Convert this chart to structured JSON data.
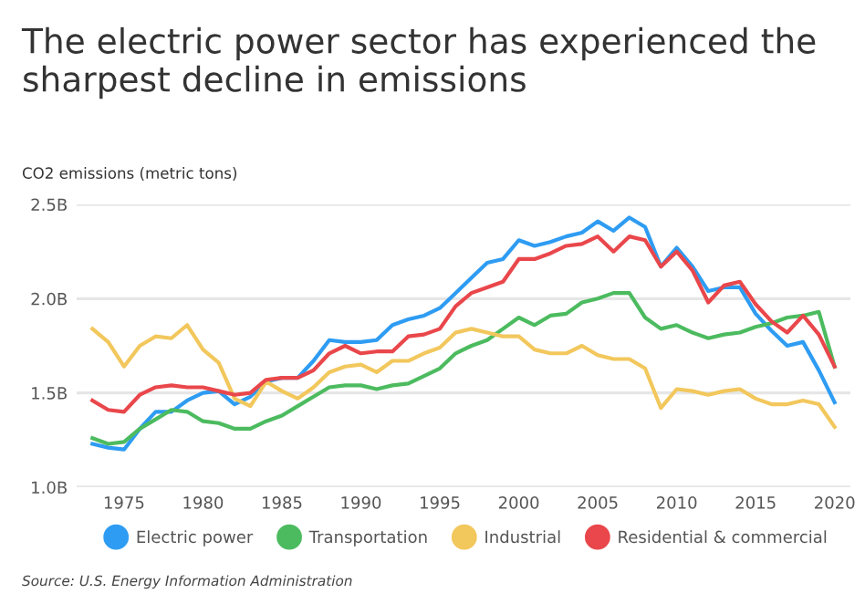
{
  "chart_data": {
    "type": "line",
    "title": "The electric power sector has experienced the sharpest decline in emissions",
    "ylabel": "CO2 emissions (metric tons)",
    "x": [
      1973,
      1974,
      1975,
      1976,
      1977,
      1978,
      1979,
      1980,
      1981,
      1982,
      1983,
      1984,
      1985,
      1986,
      1987,
      1988,
      1989,
      1990,
      1991,
      1992,
      1993,
      1994,
      1995,
      1996,
      1997,
      1998,
      1999,
      2000,
      2001,
      2002,
      2003,
      2004,
      2005,
      2006,
      2007,
      2008,
      2009,
      2010,
      2011,
      2012,
      2013,
      2014,
      2015,
      2016,
      2017,
      2018,
      2019,
      2020
    ],
    "series": [
      {
        "name": "Electric power",
        "color": "#2e9cf2",
        "values": [
          1.23,
          1.21,
          1.2,
          1.31,
          1.4,
          1.4,
          1.46,
          1.5,
          1.51,
          1.44,
          1.48,
          1.56,
          1.58,
          1.58,
          1.67,
          1.78,
          1.77,
          1.77,
          1.78,
          1.86,
          1.89,
          1.91,
          1.95,
          2.03,
          2.11,
          2.19,
          2.21,
          2.31,
          2.28,
          2.3,
          2.33,
          2.35,
          2.41,
          2.36,
          2.43,
          2.38,
          2.17,
          2.27,
          2.17,
          2.04,
          2.06,
          2.06,
          1.92,
          1.83,
          1.75,
          1.77,
          1.62,
          1.45
        ]
      },
      {
        "name": "Transportation",
        "color": "#4cbb5f",
        "values": [
          1.26,
          1.23,
          1.24,
          1.31,
          1.36,
          1.41,
          1.4,
          1.35,
          1.34,
          1.31,
          1.31,
          1.35,
          1.38,
          1.43,
          1.48,
          1.53,
          1.54,
          1.54,
          1.52,
          1.54,
          1.55,
          1.59,
          1.63,
          1.71,
          1.75,
          1.78,
          1.84,
          1.9,
          1.86,
          1.91,
          1.92,
          1.98,
          2.0,
          2.03,
          2.03,
          1.9,
          1.84,
          1.86,
          1.82,
          1.79,
          1.81,
          1.82,
          1.85,
          1.87,
          1.9,
          1.91,
          1.93,
          1.64
        ]
      },
      {
        "name": "Industrial",
        "color": "#f2c75c",
        "values": [
          1.84,
          1.77,
          1.64,
          1.75,
          1.8,
          1.79,
          1.86,
          1.73,
          1.66,
          1.47,
          1.43,
          1.56,
          1.51,
          1.47,
          1.53,
          1.61,
          1.64,
          1.65,
          1.61,
          1.67,
          1.67,
          1.71,
          1.74,
          1.82,
          1.84,
          1.82,
          1.8,
          1.8,
          1.73,
          1.71,
          1.71,
          1.75,
          1.7,
          1.68,
          1.68,
          1.63,
          1.42,
          1.52,
          1.51,
          1.49,
          1.51,
          1.52,
          1.47,
          1.44,
          1.44,
          1.46,
          1.44,
          1.32
        ]
      },
      {
        "name": "Residential & commercial",
        "color": "#e9474b",
        "values": [
          1.46,
          1.41,
          1.4,
          1.49,
          1.53,
          1.54,
          1.53,
          1.53,
          1.51,
          1.49,
          1.5,
          1.57,
          1.58,
          1.58,
          1.62,
          1.71,
          1.75,
          1.71,
          1.72,
          1.72,
          1.8,
          1.81,
          1.84,
          1.96,
          2.03,
          2.06,
          2.09,
          2.21,
          2.21,
          2.24,
          2.28,
          2.29,
          2.33,
          2.25,
          2.33,
          2.31,
          2.17,
          2.25,
          2.15,
          1.98,
          2.07,
          2.09,
          1.97,
          1.88,
          1.82,
          1.91,
          1.81,
          1.64
        ]
      }
    ],
    "xlim": [
      1972,
      2021
    ],
    "xticks": [
      1975,
      1980,
      1985,
      1990,
      1995,
      2000,
      2005,
      2010,
      2015,
      2020
    ],
    "ylim": [
      1.0,
      2.5
    ],
    "yticks": [
      {
        "value": 1.0,
        "label": "1.0B"
      },
      {
        "value": 1.5,
        "label": "1.5B"
      },
      {
        "value": 2.0,
        "label": "2.0B"
      },
      {
        "value": 2.5,
        "label": "2.5B"
      }
    ],
    "grid": "y",
    "legend": "bottom",
    "marker": "none",
    "line_style": "solid",
    "annotations": [
      "Source: U.S. Energy Information Administration"
    ]
  }
}
